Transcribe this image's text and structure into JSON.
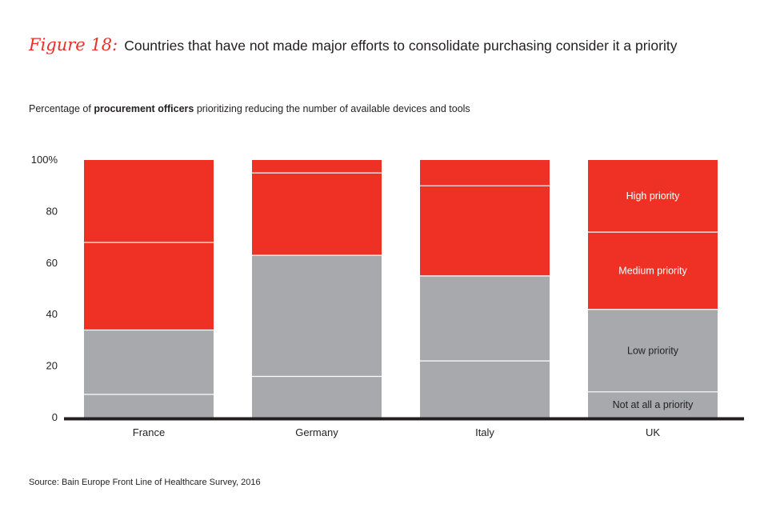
{
  "header": {
    "figure_label": "Figure 18:",
    "title": "Countries that have not made major efforts to consolidate purchasing consider it a priority"
  },
  "subtitle": {
    "prefix": "Percentage of ",
    "bold": "procurement officers",
    "suffix": " prioritizing reducing the number of available devices and tools"
  },
  "source": "Source: Bain Europe Front Line of Healthcare Survey, 2016",
  "colors": {
    "high": "#ee3124",
    "medium": "#ee3124",
    "low": "#a7a9ac",
    "not_at_all": "#a7a9ac",
    "divider": "#ffffff",
    "axis": "#231f20"
  },
  "chart_data": {
    "type": "bar",
    "stacked": true,
    "categories": [
      "France",
      "Germany",
      "Italy",
      "UK"
    ],
    "series": [
      {
        "name": "Not at all a priority",
        "key": "not_at_all",
        "label_color": "#231f20",
        "values": [
          9,
          16,
          22,
          10
        ]
      },
      {
        "name": "Low priority",
        "key": "low",
        "label_color": "#231f20",
        "values": [
          25,
          47,
          33,
          32
        ]
      },
      {
        "name": "Medium priority",
        "key": "medium",
        "label_color": "#ffffff",
        "values": [
          34,
          32,
          35,
          30
        ]
      },
      {
        "name": "High priority",
        "key": "high",
        "label_color": "#ffffff",
        "values": [
          32,
          5,
          10,
          28
        ]
      }
    ],
    "segment_labels_on": "UK",
    "yticks": [
      "0",
      "20",
      "40",
      "60",
      "80",
      "100%"
    ],
    "ytick_values": [
      0,
      20,
      40,
      60,
      80,
      100
    ],
    "ylim": [
      0,
      100
    ],
    "grid": false,
    "legend": "none"
  }
}
